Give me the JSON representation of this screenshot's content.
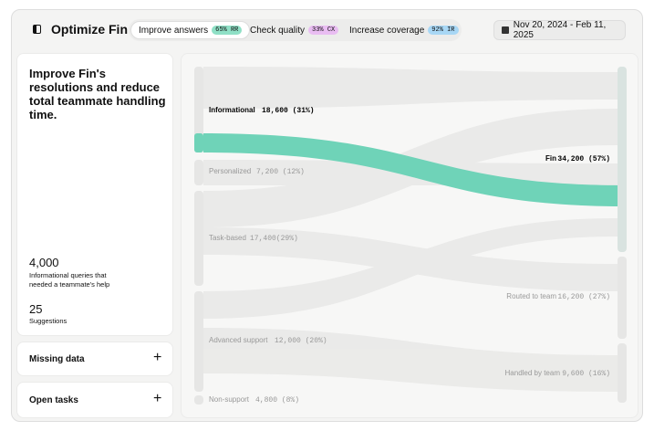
{
  "header": {
    "title": "Optimize Fin",
    "tabs": [
      {
        "label": "Improve answers",
        "badge": "65% RR"
      },
      {
        "label": "Check quality",
        "badge": "33% CX"
      },
      {
        "label": "Increase coverage",
        "badge": "92% IR"
      }
    ],
    "date_range": "Nov 20, 2024 - Feb 11, 2025"
  },
  "summary": {
    "heading": "Improve Fin's resolutions and reduce total teammate handling time.",
    "stats": [
      {
        "value": "4,000",
        "label": "Informational queries that needed a teammate's help"
      },
      {
        "value": "25",
        "label": "Suggestions"
      }
    ]
  },
  "sections": [
    {
      "label": "Missing data"
    },
    {
      "label": "Open tasks"
    }
  ],
  "sankey": {
    "sources": [
      {
        "label": "Informational",
        "value": "18,600 (31%)"
      },
      {
        "label": "Personalized",
        "value": "7,200 (12%)"
      },
      {
        "label": "Task-based",
        "value": "17,400(29%)"
      },
      {
        "label": "Advanced support",
        "value": "12,000 (20%)"
      },
      {
        "label": "Non-support",
        "value": "4,800 (8%)"
      }
    ],
    "targets": [
      {
        "label": "Fin",
        "value": "34,200 (57%)"
      },
      {
        "label": "Routed to team",
        "value": "16,200 (27%)"
      },
      {
        "label": "Handled by team",
        "value": "9,600 (16%)"
      }
    ]
  }
}
